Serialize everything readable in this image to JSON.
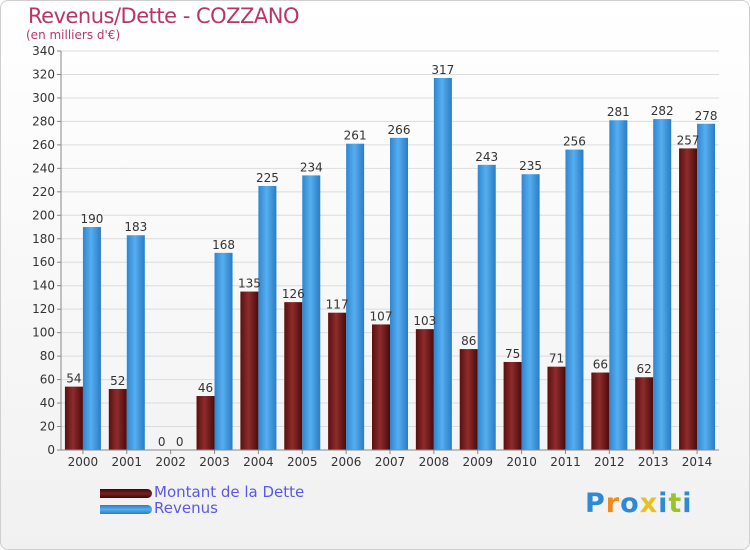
{
  "title": "Revenus/Dette - COZZANO",
  "subtitle": "(en milliers d'€)",
  "logo": "Proxiti",
  "colors": {
    "title": "#b8356a",
    "debt": "#7a1f1f",
    "revenue": "#45a0e4",
    "legend_text": "#5a58e6",
    "logo_letters": [
      "#2f8ad6",
      "#f08a1c",
      "#2f8ad6",
      "#e8c21a",
      "#2f8ad6",
      "#9bc22a",
      "#2f8ad6"
    ]
  },
  "legend": [
    {
      "label": "Montant de la Dette",
      "color": "#7a1f1f"
    },
    {
      "label": "Revenus",
      "color": "#45a0e4"
    }
  ],
  "chart_data": {
    "type": "bar",
    "title": "Revenus/Dette - COZZANO",
    "subtitle": "(en milliers d'€)",
    "categories": [
      "2000",
      "2001",
      "2002",
      "2003",
      "2004",
      "2005",
      "2006",
      "2007",
      "2008",
      "2009",
      "2010",
      "2011",
      "2012",
      "2013",
      "2014"
    ],
    "series": [
      {
        "name": "Montant de la Dette",
        "values": [
          54,
          52,
          0,
          46,
          135,
          126,
          117,
          107,
          103,
          86,
          75,
          71,
          66,
          62,
          257
        ]
      },
      {
        "name": "Revenus",
        "values": [
          190,
          183,
          0,
          168,
          225,
          234,
          261,
          266,
          317,
          243,
          235,
          256,
          281,
          282,
          278
        ]
      }
    ],
    "ylim": [
      0,
      340
    ],
    "yticks": [
      0,
      20,
      40,
      60,
      80,
      100,
      120,
      140,
      160,
      180,
      200,
      220,
      240,
      260,
      280,
      300,
      320,
      340
    ],
    "grid": true,
    "legend_position": "bottom-left"
  }
}
